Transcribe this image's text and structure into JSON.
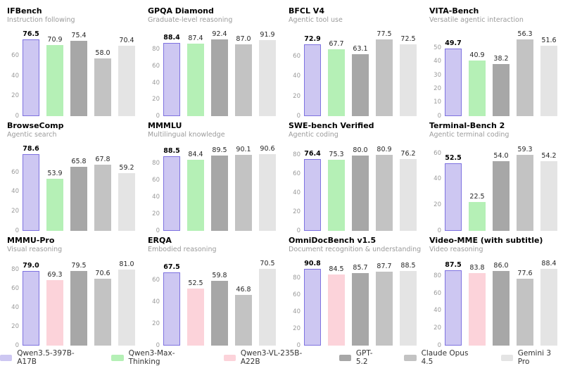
{
  "legend": {
    "items": [
      {
        "label": "Qwen3.5-397B-A17B",
        "fill": "#cdc7f2",
        "edge": "#7e72e0"
      },
      {
        "label": "Qwen3-Max-Thinking",
        "fill": "#b5f0b6"
      },
      {
        "label": "Qwen3-VL-235B-A22B",
        "fill": "#fcd3da"
      },
      {
        "label": "GPT-5.2",
        "fill": "#a7a7a7"
      },
      {
        "label": "Claude Opus 4.5",
        "fill": "#c3c3c3"
      },
      {
        "label": "Gemini 3 Pro",
        "fill": "#e4e4e4"
      }
    ]
  },
  "chart_layout": {
    "value_decimals": 1,
    "highlight_category": "Qwen3.5-397B-A17B",
    "grid": "off",
    "legend_position": "bottom"
  },
  "chart_data": [
    {
      "type": "bar",
      "title": "IFBench",
      "subtitle": "Instruction following",
      "categories": [
        "Qwen3.5-397B-A17B",
        "Qwen3-Max-Thinking",
        "GPT-5.2",
        "Claude Opus 4.5",
        "Gemini 3 Pro"
      ],
      "values": [
        76.5,
        70.9,
        75.4,
        58.0,
        70.4
      ],
      "xlabel": "",
      "ylabel": "",
      "yticks": [
        0,
        20,
        40,
        60
      ],
      "ylim": [
        0,
        80.3
      ]
    },
    {
      "type": "bar",
      "title": "GPQA Diamond",
      "subtitle": "Graduate-level reasoning",
      "categories": [
        "Qwen3.5-397B-A17B",
        "Qwen3-Max-Thinking",
        "GPT-5.2",
        "Claude Opus 4.5",
        "Gemini 3 Pro"
      ],
      "values": [
        88.4,
        87.4,
        92.4,
        87.0,
        91.9
      ],
      "xlabel": "",
      "ylabel": "",
      "yticks": [
        0,
        20,
        40,
        60,
        80
      ],
      "ylim": [
        0,
        97.0
      ]
    },
    {
      "type": "bar",
      "title": "BFCL V4",
      "subtitle": "Agentic tool use",
      "categories": [
        "Qwen3.5-397B-A17B",
        "Qwen3-Max-Thinking",
        "GPT-5.2",
        "Claude Opus 4.5",
        "Gemini 3 Pro"
      ],
      "values": [
        72.9,
        67.7,
        63.1,
        77.5,
        72.5
      ],
      "xlabel": "",
      "ylabel": "",
      "yticks": [
        0,
        20,
        40,
        60
      ],
      "ylim": [
        0,
        81.4
      ]
    },
    {
      "type": "bar",
      "title": "VITA-Bench",
      "subtitle": "Versatile agentic interaction",
      "categories": [
        "Qwen3.5-397B-A17B",
        "Qwen3-Max-Thinking",
        "GPT-5.2",
        "Claude Opus 4.5",
        "Gemini 3 Pro"
      ],
      "values": [
        49.7,
        40.9,
        38.2,
        56.3,
        51.6
      ],
      "xlabel": "",
      "ylabel": "",
      "yticks": [
        0,
        10,
        20,
        30,
        40,
        50
      ],
      "ylim": [
        0,
        59.1
      ]
    },
    {
      "type": "bar",
      "title": "BrowseComp",
      "subtitle": "Agentic search",
      "categories": [
        "Qwen3.5-397B-A17B",
        "Qwen3-Max-Thinking",
        "GPT-5.2",
        "Claude Opus 4.5",
        "Gemini 3 Pro"
      ],
      "values": [
        78.6,
        53.9,
        65.8,
        67.8,
        59.2
      ],
      "xlabel": "",
      "ylabel": "",
      "yticks": [
        0,
        20,
        40,
        60
      ],
      "ylim": [
        0,
        82.5
      ]
    },
    {
      "type": "bar",
      "title": "MMMLU",
      "subtitle": "Multilingual knowledge",
      "categories": [
        "Qwen3.5-397B-A17B",
        "Qwen3-Max-Thinking",
        "GPT-5.2",
        "Claude Opus 4.5",
        "Gemini 3 Pro"
      ],
      "values": [
        88.5,
        84.4,
        89.5,
        90.1,
        90.6
      ],
      "xlabel": "",
      "ylabel": "",
      "yticks": [
        0,
        20,
        40,
        60,
        80
      ],
      "ylim": [
        0,
        95.1
      ]
    },
    {
      "type": "bar",
      "title": "SWE-bench Verified",
      "subtitle": "Agentic coding",
      "categories": [
        "Qwen3.5-397B-A17B",
        "Qwen3-Max-Thinking",
        "GPT-5.2",
        "Claude Opus 4.5",
        "Gemini 3 Pro"
      ],
      "values": [
        76.4,
        75.3,
        80.0,
        80.9,
        76.2
      ],
      "xlabel": "",
      "ylabel": "",
      "yticks": [
        0,
        20,
        40,
        60,
        80
      ],
      "ylim": [
        0,
        85.0
      ]
    },
    {
      "type": "bar",
      "title": "Terminal-Bench 2",
      "subtitle": "Agentic terminal coding",
      "categories": [
        "Qwen3.5-397B-A17B",
        "Qwen3-Max-Thinking",
        "GPT-5.2",
        "Claude Opus 4.5",
        "Gemini 3 Pro"
      ],
      "values": [
        52.5,
        22.5,
        54.0,
        59.3,
        54.2
      ],
      "xlabel": "",
      "ylabel": "",
      "yticks": [
        0,
        20,
        40,
        60
      ],
      "ylim": [
        0,
        62.3
      ]
    },
    {
      "type": "bar",
      "title": "MMMU-Pro",
      "subtitle": "Visual reasoning",
      "categories": [
        "Qwen3.5-397B-A17B",
        "Qwen3-VL-235B-A22B",
        "GPT-5.2",
        "Claude Opus 4.5",
        "Gemini 3 Pro"
      ],
      "values": [
        79.0,
        69.3,
        79.5,
        70.6,
        81.0
      ],
      "xlabel": "",
      "ylabel": "",
      "yticks": [
        0,
        20,
        40,
        60,
        80
      ],
      "ylim": [
        0,
        85.1
      ]
    },
    {
      "type": "bar",
      "title": "ERQA",
      "subtitle": "Embodied reasoning",
      "categories": [
        "Qwen3.5-397B-A17B",
        "Qwen3-VL-235B-A22B",
        "GPT-5.2",
        "Claude Opus 4.5",
        "Gemini 3 Pro"
      ],
      "values": [
        67.5,
        52.5,
        59.8,
        46.8,
        70.5
      ],
      "xlabel": "",
      "ylabel": "",
      "yticks": [
        0,
        20,
        40,
        60
      ],
      "ylim": [
        0,
        74.0
      ]
    },
    {
      "type": "bar",
      "title": "OmniDocBench v1.5",
      "subtitle": "Document recognition & understanding",
      "categories": [
        "Qwen3.5-397B-A17B",
        "Qwen3-VL-235B-A22B",
        "GPT-5.2",
        "Claude Opus 4.5",
        "Gemini 3 Pro"
      ],
      "values": [
        90.8,
        84.5,
        85.7,
        87.7,
        88.5
      ],
      "xlabel": "",
      "ylabel": "",
      "yticks": [
        0,
        20,
        40,
        60,
        80
      ],
      "ylim": [
        0,
        95.3
      ]
    },
    {
      "type": "bar",
      "title": "Video-MME (with subtitle)",
      "subtitle": "Video reasoning",
      "categories": [
        "Qwen3.5-397B-A17B",
        "Qwen3-VL-235B-A22B",
        "GPT-5.2",
        "Claude Opus 4.5",
        "Gemini 3 Pro"
      ],
      "values": [
        87.5,
        83.8,
        86.0,
        77.6,
        88.4
      ],
      "xlabel": "",
      "ylabel": "",
      "yticks": [
        0,
        20,
        40,
        60,
        80
      ],
      "ylim": [
        0,
        92.8
      ]
    }
  ]
}
